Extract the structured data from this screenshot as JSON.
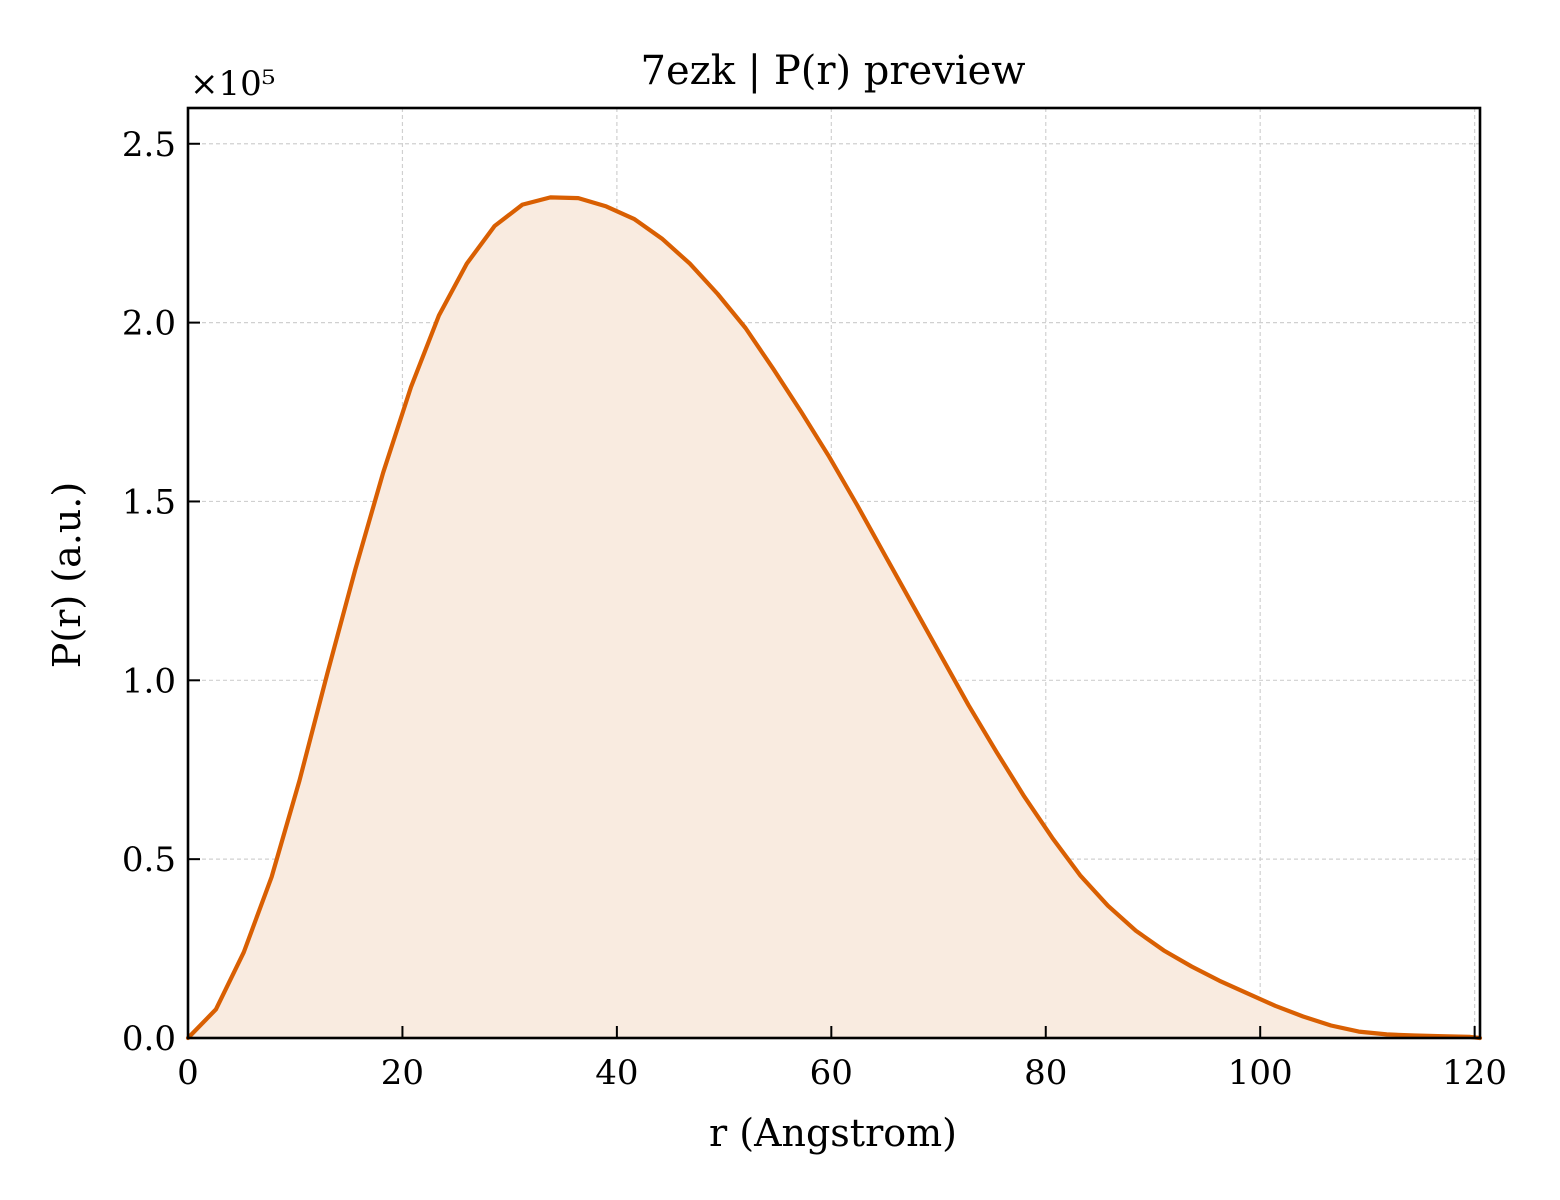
{
  "chart_data": {
    "type": "area",
    "title": "7ezk | P(r) preview",
    "xlabel": "r (Angstrom)",
    "ylabel": "P(r) (a.u.)",
    "y_multiplier_label": "×10⁵",
    "xlim": [
      0,
      120.5
    ],
    "ylim": [
      0,
      2.6
    ],
    "x_ticks": [
      0,
      20,
      40,
      60,
      80,
      100,
      120
    ],
    "x_tick_labels": [
      "0",
      "20",
      "40",
      "60",
      "80",
      "100",
      "120"
    ],
    "y_ticks": [
      0,
      0.5,
      1.0,
      1.5,
      2.0,
      2.5
    ],
    "y_tick_labels": [
      "0.0",
      "0.5",
      "1.0",
      "1.5",
      "2.0",
      "2.5"
    ],
    "grid": true,
    "colors": {
      "line": "#d95f02",
      "fill": "#f9ebe0",
      "grid": "#d0d0d0"
    },
    "series": [
      {
        "x": [
          0,
          2.6,
          5.2,
          7.8,
          10.4,
          13.0,
          15.6,
          18.2,
          20.8,
          23.4,
          26.0,
          28.6,
          31.2,
          33.8,
          36.4,
          39.0,
          41.6,
          44.2,
          46.8,
          49.4,
          52.0,
          54.6,
          57.2,
          59.8,
          62.4,
          65.0,
          67.6,
          70.2,
          72.8,
          75.4,
          78.0,
          80.6,
          83.2,
          85.8,
          88.4,
          91.0,
          93.6,
          96.2,
          98.8,
          101.4,
          104.0,
          106.6,
          109.2,
          111.8,
          114.4,
          117.0,
          119.6,
          120.5
        ],
        "y": [
          0.0,
          0.08,
          0.24,
          0.45,
          0.72,
          1.02,
          1.31,
          1.58,
          1.82,
          2.02,
          2.165,
          2.27,
          2.33,
          2.35,
          2.348,
          2.325,
          2.29,
          2.235,
          2.165,
          2.08,
          1.985,
          1.87,
          1.75,
          1.625,
          1.49,
          1.35,
          1.21,
          1.07,
          0.93,
          0.8,
          0.675,
          0.56,
          0.455,
          0.37,
          0.3,
          0.245,
          0.2,
          0.16,
          0.125,
          0.09,
          0.06,
          0.035,
          0.018,
          0.01,
          0.007,
          0.005,
          0.003,
          0.0
        ]
      }
    ]
  }
}
